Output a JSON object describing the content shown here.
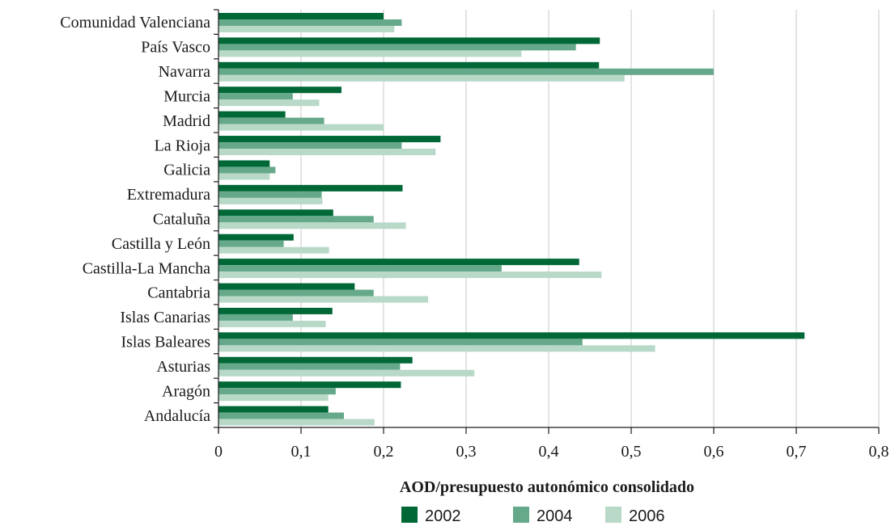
{
  "chart_data": {
    "type": "bar",
    "orientation": "horizontal",
    "title": "",
    "xlabel": "AOD/presupuesto autonómico consolidado",
    "ylabel": "",
    "xlim": [
      0,
      0.8
    ],
    "x_ticks": [
      "0",
      "0,1",
      "0,2",
      "0,3",
      "0,4",
      "0,5",
      "0,6",
      "0,7",
      "0,8"
    ],
    "grid": "vertical",
    "legend_position": "bottom",
    "categories": [
      "Comunidad Valenciana",
      "País Vasco",
      "Navarra",
      "Murcia",
      "Madrid",
      "La Rioja",
      "Galicia",
      "Extremadura",
      "Cataluña",
      "Castilla y León",
      "Castilla-La Mancha",
      "Cantabria",
      "Islas Canarias",
      "Islas Baleares",
      "Asturias",
      "Aragón",
      "Andalucía"
    ],
    "series": [
      {
        "name": "2002",
        "color": "#006837",
        "values": [
          0.2,
          0.462,
          0.461,
          0.149,
          0.081,
          0.269,
          0.062,
          0.223,
          0.139,
          0.091,
          0.437,
          0.165,
          0.138,
          0.71,
          0.235,
          0.221,
          0.133
        ]
      },
      {
        "name": "2004",
        "color": "#66a88a",
        "values": [
          0.222,
          0.433,
          0.6,
          0.09,
          0.128,
          0.222,
          0.069,
          0.125,
          0.188,
          0.079,
          0.343,
          0.188,
          0.09,
          0.441,
          0.22,
          0.142,
          0.152
        ]
      },
      {
        "name": "2006",
        "color": "#b8d8c8",
        "values": [
          0.213,
          0.367,
          0.492,
          0.122,
          0.2,
          0.263,
          0.062,
          0.126,
          0.227,
          0.134,
          0.464,
          0.254,
          0.13,
          0.529,
          0.31,
          0.133,
          0.189
        ]
      }
    ]
  }
}
